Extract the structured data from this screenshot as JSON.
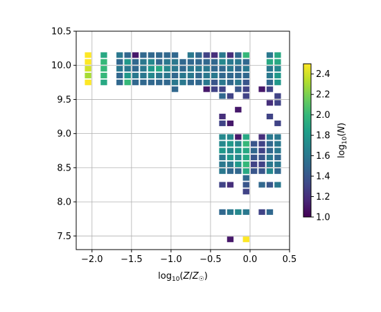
{
  "chart_data": {
    "type": "heatmap",
    "xlabel": "log10(Z/Z☉)",
    "ylabel": "",
    "colorbar_label": "log10(N)",
    "xlim": [
      -2.2,
      0.5
    ],
    "ylim": [
      7.3,
      10.5
    ],
    "grid": true,
    "colormap": "viridis",
    "color_range": [
      1.0,
      2.5
    ],
    "x_ticks": [
      -2.0,
      -1.5,
      -1.0,
      -0.5,
      0.0,
      0.5
    ],
    "x_tick_labels": [
      "−2.0",
      "−1.5",
      "−1.0",
      "−0.5",
      "0.0",
      "0.5"
    ],
    "y_ticks": [
      7.5,
      8.0,
      8.5,
      9.0,
      9.5,
      10.0,
      10.5
    ],
    "y_tick_labels": [
      "7.5",
      "8.0",
      "8.5",
      "9.0",
      "9.5",
      "10.0",
      "10.5"
    ],
    "colorbar_ticks": [
      1.0,
      1.2,
      1.4,
      1.6,
      1.8,
      2.0,
      2.2,
      2.4
    ],
    "colorbar_tick_labels": [
      "1.0",
      "1.2",
      "1.4",
      "1.6",
      "1.8",
      "2.0",
      "2.2",
      "2.4"
    ],
    "bin_size": [
      0.1,
      0.1
    ],
    "cells": [
      {
        "x": -2.05,
        "y": 10.15,
        "v": 2.5
      },
      {
        "x": -2.05,
        "y": 10.05,
        "v": 2.5
      },
      {
        "x": -2.05,
        "y": 9.95,
        "v": 2.4
      },
      {
        "x": -2.05,
        "y": 9.85,
        "v": 2.3
      },
      {
        "x": -2.05,
        "y": 9.75,
        "v": 2.5
      },
      {
        "x": -1.85,
        "y": 10.15,
        "v": 1.9
      },
      {
        "x": -1.85,
        "y": 10.05,
        "v": 2.0
      },
      {
        "x": -1.85,
        "y": 9.95,
        "v": 2.0
      },
      {
        "x": -1.85,
        "y": 9.85,
        "v": 2.0
      },
      {
        "x": -1.85,
        "y": 9.75,
        "v": 1.9
      },
      {
        "x": -1.65,
        "y": 10.15,
        "v": 1.6
      },
      {
        "x": -1.65,
        "y": 10.05,
        "v": 1.5
      },
      {
        "x": -1.65,
        "y": 9.95,
        "v": 1.6
      },
      {
        "x": -1.65,
        "y": 9.85,
        "v": 1.5
      },
      {
        "x": -1.65,
        "y": 9.75,
        "v": 1.5
      },
      {
        "x": -1.55,
        "y": 10.15,
        "v": 1.5
      },
      {
        "x": -1.55,
        "y": 10.05,
        "v": 1.8
      },
      {
        "x": -1.55,
        "y": 9.95,
        "v": 1.6
      },
      {
        "x": -1.55,
        "y": 9.85,
        "v": 1.8
      },
      {
        "x": -1.55,
        "y": 9.75,
        "v": 2.0
      },
      {
        "x": -1.45,
        "y": 10.15,
        "v": 1.1
      },
      {
        "x": -1.45,
        "y": 10.05,
        "v": 1.5
      },
      {
        "x": -1.45,
        "y": 9.95,
        "v": 1.5
      },
      {
        "x": -1.45,
        "y": 9.85,
        "v": 1.6
      },
      {
        "x": -1.45,
        "y": 9.75,
        "v": 1.5
      },
      {
        "x": -1.35,
        "y": 10.15,
        "v": 1.5
      },
      {
        "x": -1.35,
        "y": 10.05,
        "v": 1.6
      },
      {
        "x": -1.35,
        "y": 9.95,
        "v": 1.6
      },
      {
        "x": -1.35,
        "y": 9.85,
        "v": 1.6
      },
      {
        "x": -1.35,
        "y": 9.75,
        "v": 1.5
      },
      {
        "x": -1.25,
        "y": 10.15,
        "v": 1.5
      },
      {
        "x": -1.25,
        "y": 10.05,
        "v": 1.7
      },
      {
        "x": -1.25,
        "y": 9.95,
        "v": 1.8
      },
      {
        "x": -1.25,
        "y": 9.85,
        "v": 1.7
      },
      {
        "x": -1.25,
        "y": 9.75,
        "v": 1.5
      },
      {
        "x": -1.15,
        "y": 10.15,
        "v": 1.5
      },
      {
        "x": -1.15,
        "y": 10.05,
        "v": 1.5
      },
      {
        "x": -1.15,
        "y": 9.95,
        "v": 1.9
      },
      {
        "x": -1.15,
        "y": 9.85,
        "v": 1.6
      },
      {
        "x": -1.15,
        "y": 9.75,
        "v": 1.5
      },
      {
        "x": -1.05,
        "y": 10.15,
        "v": 1.5
      },
      {
        "x": -1.05,
        "y": 10.05,
        "v": 1.6
      },
      {
        "x": -1.05,
        "y": 9.95,
        "v": 1.7
      },
      {
        "x": -1.05,
        "y": 9.85,
        "v": 1.6
      },
      {
        "x": -1.05,
        "y": 9.75,
        "v": 1.5
      },
      {
        "x": -0.95,
        "y": 10.15,
        "v": 1.5
      },
      {
        "x": -0.95,
        "y": 10.05,
        "v": 1.6
      },
      {
        "x": -0.95,
        "y": 9.95,
        "v": 1.6
      },
      {
        "x": -0.95,
        "y": 9.85,
        "v": 1.5
      },
      {
        "x": -0.95,
        "y": 9.75,
        "v": 1.6
      },
      {
        "x": -0.95,
        "y": 9.65,
        "v": 1.5
      },
      {
        "x": -0.85,
        "y": 10.05,
        "v": 1.5
      },
      {
        "x": -0.85,
        "y": 9.95,
        "v": 1.5
      },
      {
        "x": -0.85,
        "y": 9.85,
        "v": 1.6
      },
      {
        "x": -0.85,
        "y": 9.75,
        "v": 1.6
      },
      {
        "x": -0.75,
        "y": 10.15,
        "v": 1.6
      },
      {
        "x": -0.75,
        "y": 10.05,
        "v": 1.5
      },
      {
        "x": -0.75,
        "y": 9.95,
        "v": 1.6
      },
      {
        "x": -0.75,
        "y": 9.85,
        "v": 1.6
      },
      {
        "x": -0.75,
        "y": 9.75,
        "v": 1.5
      },
      {
        "x": -0.65,
        "y": 10.15,
        "v": 1.5
      },
      {
        "x": -0.65,
        "y": 10.05,
        "v": 1.5
      },
      {
        "x": -0.65,
        "y": 9.95,
        "v": 1.6
      },
      {
        "x": -0.65,
        "y": 9.85,
        "v": 1.5
      },
      {
        "x": -0.65,
        "y": 9.75,
        "v": 1.5
      },
      {
        "x": -0.55,
        "y": 10.15,
        "v": 1.3
      },
      {
        "x": -0.55,
        "y": 10.05,
        "v": 1.5
      },
      {
        "x": -0.55,
        "y": 9.95,
        "v": 1.6
      },
      {
        "x": -0.55,
        "y": 9.85,
        "v": 1.6
      },
      {
        "x": -0.55,
        "y": 9.75,
        "v": 1.6
      },
      {
        "x": -0.55,
        "y": 9.65,
        "v": 1.1
      },
      {
        "x": -0.45,
        "y": 10.15,
        "v": 1.2
      },
      {
        "x": -0.45,
        "y": 10.05,
        "v": 1.5
      },
      {
        "x": -0.45,
        "y": 9.95,
        "v": 1.5
      },
      {
        "x": -0.45,
        "y": 9.85,
        "v": 1.6
      },
      {
        "x": -0.45,
        "y": 9.75,
        "v": 1.4
      },
      {
        "x": -0.45,
        "y": 9.65,
        "v": 1.3
      },
      {
        "x": -0.35,
        "y": 10.15,
        "v": 1.6
      },
      {
        "x": -0.35,
        "y": 10.05,
        "v": 1.7
      },
      {
        "x": -0.35,
        "y": 9.95,
        "v": 1.5
      },
      {
        "x": -0.35,
        "y": 9.85,
        "v": 1.5
      },
      {
        "x": -0.35,
        "y": 9.75,
        "v": 1.6
      },
      {
        "x": -0.35,
        "y": 9.65,
        "v": 1.3
      },
      {
        "x": -0.35,
        "y": 9.55,
        "v": 1.5
      },
      {
        "x": -0.35,
        "y": 9.25,
        "v": 1.2
      },
      {
        "x": -0.35,
        "y": 9.15,
        "v": 1.3
      },
      {
        "x": -0.35,
        "y": 8.95,
        "v": 1.7
      },
      {
        "x": -0.35,
        "y": 8.85,
        "v": 1.7
      },
      {
        "x": -0.35,
        "y": 8.75,
        "v": 1.8
      },
      {
        "x": -0.35,
        "y": 8.65,
        "v": 1.6
      },
      {
        "x": -0.35,
        "y": 8.55,
        "v": 1.6
      },
      {
        "x": -0.35,
        "y": 8.45,
        "v": 1.6
      },
      {
        "x": -0.35,
        "y": 8.25,
        "v": 1.3
      },
      {
        "x": -0.35,
        "y": 7.85,
        "v": 1.5
      },
      {
        "x": -0.25,
        "y": 10.15,
        "v": 1.2
      },
      {
        "x": -0.25,
        "y": 10.05,
        "v": 1.6
      },
      {
        "x": -0.25,
        "y": 9.95,
        "v": 1.6
      },
      {
        "x": -0.25,
        "y": 9.85,
        "v": 1.5
      },
      {
        "x": -0.25,
        "y": 9.75,
        "v": 1.5
      },
      {
        "x": -0.25,
        "y": 9.55,
        "v": 1.3
      },
      {
        "x": -0.25,
        "y": 9.15,
        "v": 1.1
      },
      {
        "x": -0.25,
        "y": 8.95,
        "v": 1.7
      },
      {
        "x": -0.25,
        "y": 8.85,
        "v": 1.8
      },
      {
        "x": -0.25,
        "y": 8.75,
        "v": 1.7
      },
      {
        "x": -0.25,
        "y": 8.65,
        "v": 1.8
      },
      {
        "x": -0.25,
        "y": 8.55,
        "v": 1.6
      },
      {
        "x": -0.25,
        "y": 8.45,
        "v": 1.5
      },
      {
        "x": -0.25,
        "y": 8.25,
        "v": 1.2
      },
      {
        "x": -0.25,
        "y": 7.85,
        "v": 1.6
      },
      {
        "x": -0.25,
        "y": 7.45,
        "v": 1.1
      },
      {
        "x": -0.15,
        "y": 10.15,
        "v": 1.5
      },
      {
        "x": -0.15,
        "y": 10.05,
        "v": 1.6
      },
      {
        "x": -0.15,
        "y": 9.95,
        "v": 1.5
      },
      {
        "x": -0.15,
        "y": 9.85,
        "v": 1.5
      },
      {
        "x": -0.15,
        "y": 9.75,
        "v": 1.6
      },
      {
        "x": -0.15,
        "y": 9.65,
        "v": 1.4
      },
      {
        "x": -0.15,
        "y": 9.35,
        "v": 1.1
      },
      {
        "x": -0.15,
        "y": 8.95,
        "v": 1.1
      },
      {
        "x": -0.15,
        "y": 8.85,
        "v": 1.7
      },
      {
        "x": -0.15,
        "y": 8.75,
        "v": 1.8
      },
      {
        "x": -0.15,
        "y": 8.65,
        "v": 1.7
      },
      {
        "x": -0.15,
        "y": 8.55,
        "v": 1.8
      },
      {
        "x": -0.15,
        "y": 8.45,
        "v": 1.5
      },
      {
        "x": -0.15,
        "y": 7.85,
        "v": 1.7
      },
      {
        "x": -0.05,
        "y": 10.15,
        "v": 2.0
      },
      {
        "x": -0.05,
        "y": 10.05,
        "v": 1.5
      },
      {
        "x": -0.05,
        "y": 9.95,
        "v": 1.6
      },
      {
        "x": -0.05,
        "y": 9.85,
        "v": 1.5
      },
      {
        "x": -0.05,
        "y": 9.75,
        "v": 1.4
      },
      {
        "x": -0.05,
        "y": 9.65,
        "v": 1.3
      },
      {
        "x": -0.05,
        "y": 9.55,
        "v": 1.3
      },
      {
        "x": -0.05,
        "y": 8.95,
        "v": 1.9
      },
      {
        "x": -0.05,
        "y": 8.85,
        "v": 2.0
      },
      {
        "x": -0.05,
        "y": 8.75,
        "v": 1.9
      },
      {
        "x": -0.05,
        "y": 8.65,
        "v": 1.9
      },
      {
        "x": -0.05,
        "y": 8.55,
        "v": 2.0
      },
      {
        "x": -0.05,
        "y": 8.45,
        "v": 1.9
      },
      {
        "x": -0.05,
        "y": 8.35,
        "v": 1.5
      },
      {
        "x": -0.05,
        "y": 8.25,
        "v": 1.4
      },
      {
        "x": -0.05,
        "y": 8.15,
        "v": 1.3
      },
      {
        "x": -0.05,
        "y": 7.85,
        "v": 1.6
      },
      {
        "x": -0.05,
        "y": 7.45,
        "v": 2.5
      },
      {
        "x": 0.05,
        "y": 8.85,
        "v": 1.4
      },
      {
        "x": 0.05,
        "y": 8.75,
        "v": 1.5
      },
      {
        "x": 0.05,
        "y": 8.65,
        "v": 1.4
      },
      {
        "x": 0.05,
        "y": 8.55,
        "v": 1.3
      },
      {
        "x": 0.05,
        "y": 8.45,
        "v": 1.4
      },
      {
        "x": 0.15,
        "y": 9.65,
        "v": 1.1
      },
      {
        "x": 0.15,
        "y": 8.95,
        "v": 1.2
      },
      {
        "x": 0.15,
        "y": 8.85,
        "v": 1.3
      },
      {
        "x": 0.15,
        "y": 8.75,
        "v": 1.3
      },
      {
        "x": 0.15,
        "y": 8.65,
        "v": 1.4
      },
      {
        "x": 0.15,
        "y": 8.55,
        "v": 1.3
      },
      {
        "x": 0.15,
        "y": 8.45,
        "v": 1.4
      },
      {
        "x": 0.15,
        "y": 8.25,
        "v": 1.5
      },
      {
        "x": 0.15,
        "y": 7.85,
        "v": 1.3
      },
      {
        "x": 0.25,
        "y": 10.15,
        "v": 1.6
      },
      {
        "x": 0.25,
        "y": 10.05,
        "v": 1.9
      },
      {
        "x": 0.25,
        "y": 9.95,
        "v": 1.6
      },
      {
        "x": 0.25,
        "y": 9.85,
        "v": 1.6
      },
      {
        "x": 0.25,
        "y": 9.75,
        "v": 1.5
      },
      {
        "x": 0.25,
        "y": 9.65,
        "v": 1.3
      },
      {
        "x": 0.25,
        "y": 9.45,
        "v": 1.2
      },
      {
        "x": 0.25,
        "y": 9.25,
        "v": 1.3
      },
      {
        "x": 0.25,
        "y": 8.95,
        "v": 1.6
      },
      {
        "x": 0.25,
        "y": 8.85,
        "v": 1.5
      },
      {
        "x": 0.25,
        "y": 8.75,
        "v": 1.5
      },
      {
        "x": 0.25,
        "y": 8.65,
        "v": 1.6
      },
      {
        "x": 0.25,
        "y": 8.55,
        "v": 1.6
      },
      {
        "x": 0.25,
        "y": 8.45,
        "v": 1.7
      },
      {
        "x": 0.25,
        "y": 8.25,
        "v": 1.4
      },
      {
        "x": 0.25,
        "y": 7.85,
        "v": 1.5
      },
      {
        "x": 0.35,
        "y": 10.15,
        "v": 1.9
      },
      {
        "x": 0.35,
        "y": 10.05,
        "v": 1.9
      },
      {
        "x": 0.35,
        "y": 9.95,
        "v": 1.7
      },
      {
        "x": 0.35,
        "y": 9.85,
        "v": 1.8
      },
      {
        "x": 0.35,
        "y": 9.75,
        "v": 1.8
      },
      {
        "x": 0.35,
        "y": 9.55,
        "v": 1.3
      },
      {
        "x": 0.35,
        "y": 9.45,
        "v": 1.3
      },
      {
        "x": 0.35,
        "y": 9.15,
        "v": 1.3
      },
      {
        "x": 0.35,
        "y": 8.95,
        "v": 1.6
      },
      {
        "x": 0.35,
        "y": 8.85,
        "v": 1.6
      },
      {
        "x": 0.35,
        "y": 8.75,
        "v": 1.6
      },
      {
        "x": 0.35,
        "y": 8.65,
        "v": 1.5
      },
      {
        "x": 0.35,
        "y": 8.55,
        "v": 1.6
      },
      {
        "x": 0.35,
        "y": 8.45,
        "v": 1.5
      },
      {
        "x": 0.35,
        "y": 8.25,
        "v": 1.6
      }
    ]
  }
}
